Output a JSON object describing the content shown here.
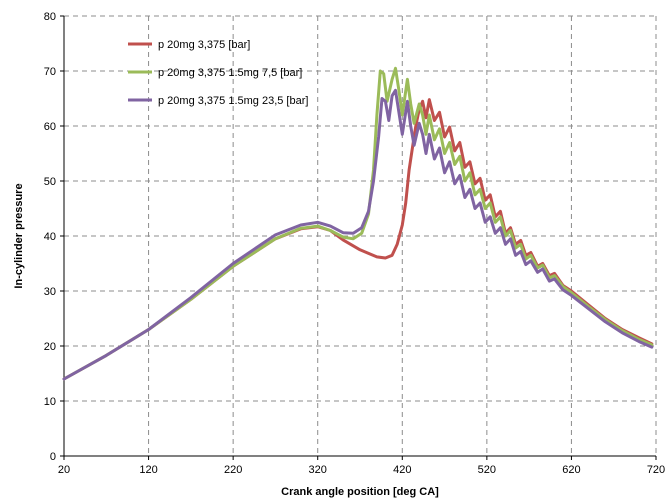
{
  "chart_data": {
    "type": "line",
    "title": "",
    "xlabel": "Crank angle position [deg CA]",
    "ylabel": "In-cylinder pressure",
    "xlim": [
      20,
      720
    ],
    "ylim": [
      0,
      80
    ],
    "x_ticks": [
      20,
      120,
      220,
      320,
      420,
      520,
      620,
      720
    ],
    "y_ticks": [
      0,
      10,
      20,
      30,
      40,
      50,
      60,
      70,
      80
    ],
    "grid": true,
    "legend_position": "top-left",
    "series": [
      {
        "name": "p 20mg 3,375 [bar]",
        "color": "#c0504d",
        "points": [
          [
            20,
            14.0
          ],
          [
            70,
            18.3
          ],
          [
            120,
            23.0
          ],
          [
            170,
            28.5
          ],
          [
            220,
            34.5
          ],
          [
            270,
            39.5
          ],
          [
            300,
            41.3
          ],
          [
            320,
            41.7
          ],
          [
            335,
            41.0
          ],
          [
            350,
            39.3
          ],
          [
            370,
            37.5
          ],
          [
            390,
            36.2
          ],
          [
            400,
            36.0
          ],
          [
            408,
            36.5
          ],
          [
            414,
            38.5
          ],
          [
            420,
            42.0
          ],
          [
            424,
            46.0
          ],
          [
            428,
            52.0
          ],
          [
            432,
            56.0
          ],
          [
            436,
            60.0
          ],
          [
            440,
            63.0
          ],
          [
            444,
            64.5
          ],
          [
            448,
            61.5
          ],
          [
            452,
            64.8
          ],
          [
            458,
            61.0
          ],
          [
            464,
            62.5
          ],
          [
            470,
            58.0
          ],
          [
            476,
            59.8
          ],
          [
            482,
            55.5
          ],
          [
            488,
            57.0
          ],
          [
            494,
            52.5
          ],
          [
            500,
            53.5
          ],
          [
            506,
            49.5
          ],
          [
            512,
            50.5
          ],
          [
            518,
            46.5
          ],
          [
            524,
            47.5
          ],
          [
            530,
            43.5
          ],
          [
            536,
            44.5
          ],
          [
            542,
            40.5
          ],
          [
            548,
            41.5
          ],
          [
            554,
            38.5
          ],
          [
            560,
            39.2
          ],
          [
            566,
            36.5
          ],
          [
            572,
            37.0
          ],
          [
            580,
            34.5
          ],
          [
            586,
            35.0
          ],
          [
            594,
            32.8
          ],
          [
            600,
            33.2
          ],
          [
            610,
            31.0
          ],
          [
            620,
            30.0
          ],
          [
            640,
            27.5
          ],
          [
            660,
            25.0
          ],
          [
            680,
            23.0
          ],
          [
            700,
            21.5
          ],
          [
            715,
            20.4
          ]
        ]
      },
      {
        "name": "p 20mg 3,375 1.5mg 7,5 [bar]",
        "color": "#9bbb59",
        "points": [
          [
            20,
            14.0
          ],
          [
            70,
            18.3
          ],
          [
            120,
            23.0
          ],
          [
            170,
            28.5
          ],
          [
            220,
            34.5
          ],
          [
            270,
            39.5
          ],
          [
            300,
            41.4
          ],
          [
            320,
            41.8
          ],
          [
            335,
            41.0
          ],
          [
            350,
            39.8
          ],
          [
            362,
            39.5
          ],
          [
            372,
            40.5
          ],
          [
            380,
            44.0
          ],
          [
            386,
            52.0
          ],
          [
            390,
            62.0
          ],
          [
            394,
            70.0
          ],
          [
            398,
            69.5
          ],
          [
            402,
            64.5
          ],
          [
            408,
            68.5
          ],
          [
            412,
            70.5
          ],
          [
            416,
            66.5
          ],
          [
            420,
            62.0
          ],
          [
            426,
            68.5
          ],
          [
            430,
            64.0
          ],
          [
            434,
            60.5
          ],
          [
            440,
            64.0
          ],
          [
            444,
            62.0
          ],
          [
            448,
            58.5
          ],
          [
            452,
            62.0
          ],
          [
            458,
            57.5
          ],
          [
            464,
            59.5
          ],
          [
            470,
            55.0
          ],
          [
            476,
            57.0
          ],
          [
            482,
            53.0
          ],
          [
            488,
            54.5
          ],
          [
            494,
            50.0
          ],
          [
            500,
            51.5
          ],
          [
            506,
            47.5
          ],
          [
            512,
            48.5
          ],
          [
            518,
            45.0
          ],
          [
            524,
            46.0
          ],
          [
            530,
            42.5
          ],
          [
            536,
            43.5
          ],
          [
            542,
            40.0
          ],
          [
            548,
            41.0
          ],
          [
            554,
            37.8
          ],
          [
            560,
            38.5
          ],
          [
            566,
            35.8
          ],
          [
            572,
            36.5
          ],
          [
            580,
            34.2
          ],
          [
            586,
            34.7
          ],
          [
            594,
            32.4
          ],
          [
            600,
            32.8
          ],
          [
            610,
            30.8
          ],
          [
            620,
            29.7
          ],
          [
            640,
            27.2
          ],
          [
            660,
            24.8
          ],
          [
            680,
            22.8
          ],
          [
            700,
            21.2
          ],
          [
            715,
            20.2
          ]
        ]
      },
      {
        "name": "p 20mg 3,375 1.5mg 23,5 [bar]",
        "color": "#8064a2",
        "points": [
          [
            20,
            14.0
          ],
          [
            70,
            18.3
          ],
          [
            120,
            23.0
          ],
          [
            170,
            28.8
          ],
          [
            220,
            35.0
          ],
          [
            270,
            40.2
          ],
          [
            300,
            42.0
          ],
          [
            320,
            42.5
          ],
          [
            335,
            41.8
          ],
          [
            350,
            40.6
          ],
          [
            362,
            40.5
          ],
          [
            372,
            41.5
          ],
          [
            380,
            44.5
          ],
          [
            386,
            50.0
          ],
          [
            392,
            58.0
          ],
          [
            396,
            65.0
          ],
          [
            400,
            64.5
          ],
          [
            404,
            61.0
          ],
          [
            408,
            65.5
          ],
          [
            412,
            66.5
          ],
          [
            416,
            62.5
          ],
          [
            420,
            58.5
          ],
          [
            426,
            64.5
          ],
          [
            430,
            60.0
          ],
          [
            434,
            56.5
          ],
          [
            440,
            60.5
          ],
          [
            444,
            58.5
          ],
          [
            448,
            55.0
          ],
          [
            452,
            58.5
          ],
          [
            458,
            54.0
          ],
          [
            464,
            56.0
          ],
          [
            470,
            51.5
          ],
          [
            476,
            53.5
          ],
          [
            482,
            49.5
          ],
          [
            488,
            51.0
          ],
          [
            494,
            47.0
          ],
          [
            500,
            48.5
          ],
          [
            506,
            45.0
          ],
          [
            512,
            46.0
          ],
          [
            518,
            42.5
          ],
          [
            524,
            43.5
          ],
          [
            530,
            40.5
          ],
          [
            536,
            41.5
          ],
          [
            542,
            38.5
          ],
          [
            548,
            39.5
          ],
          [
            554,
            36.5
          ],
          [
            560,
            37.2
          ],
          [
            566,
            34.8
          ],
          [
            572,
            35.5
          ],
          [
            580,
            33.4
          ],
          [
            586,
            34.0
          ],
          [
            594,
            31.8
          ],
          [
            600,
            32.2
          ],
          [
            610,
            30.2
          ],
          [
            620,
            29.2
          ],
          [
            640,
            26.8
          ],
          [
            660,
            24.4
          ],
          [
            680,
            22.4
          ],
          [
            700,
            20.8
          ],
          [
            715,
            19.8
          ]
        ]
      }
    ]
  }
}
